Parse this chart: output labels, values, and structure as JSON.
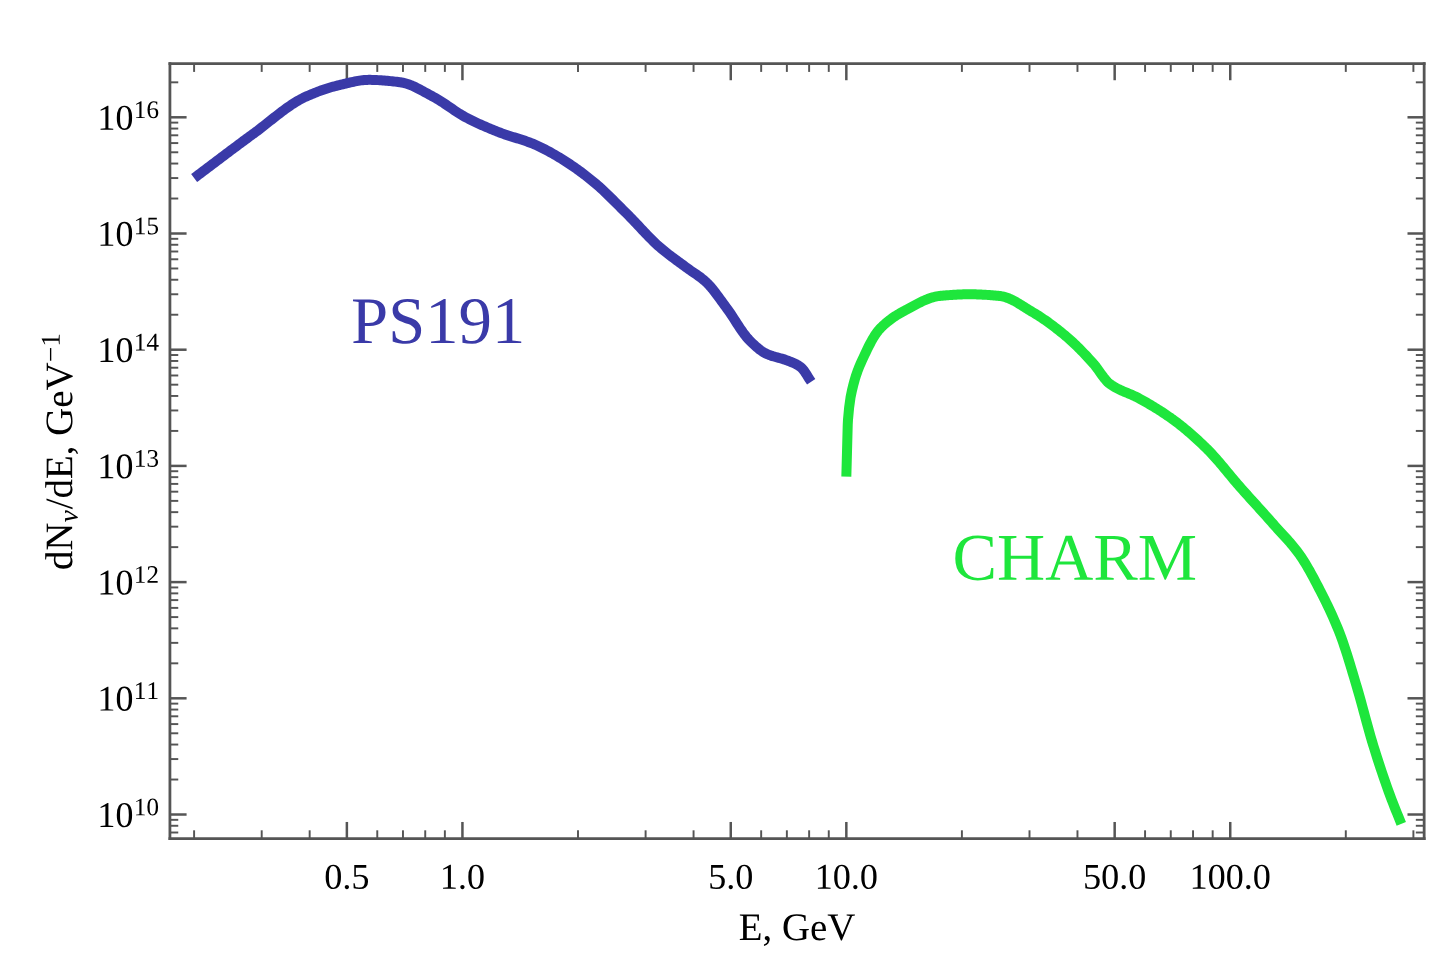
{
  "chart_data": {
    "type": "line",
    "xlabel": "E, GeV",
    "ylabel": "dN$_{ν}$/dE, GeV$^{−1}$",
    "log": "xy",
    "xlim": [
      0.173,
      320
    ],
    "ylim": [
      6200000000.0,
      2.9e+16
    ],
    "xticks": [
      0.5,
      {
        "value": 1,
        "label": "1.0"
      },
      {
        "value": 5,
        "label": "5.0"
      },
      {
        "value": 10,
        "label": "10.0"
      },
      {
        "value": 50,
        "label": "50.0"
      },
      {
        "value": 100,
        "label": "100.0"
      }
    ],
    "yticks": [
      {
        "value": 10000000000.0,
        "label": "10$^{10}$"
      },
      {
        "value": 100000000000.0,
        "label": "10$^{11}$"
      },
      {
        "value": 1000000000000.0,
        "label": "10$^{12}$"
      },
      {
        "value": 10000000000000.0,
        "label": "10$^{13}$"
      },
      {
        "value": 100000000000000.0,
        "label": "10$^{14}$"
      },
      {
        "value": 1000000000000000.0,
        "label": "10$^{15}$"
      },
      {
        "value": 1e+16,
        "label": "10$^{16}$"
      }
    ],
    "series": [
      {
        "name": "PS191",
        "color": "#3a3aa8",
        "x": [
          0.2,
          0.285,
          0.39,
          0.48,
          0.57,
          0.69,
          0.84,
          1.02,
          1.25,
          1.53,
          1.79,
          2.19,
          2.67,
          3.27,
          3.83,
          4.32,
          4.87,
          5.6,
          6.2,
          7.0,
          7.6,
          8.1
        ],
        "values": [
          3000000000000000.0,
          7200000000000000.0,
          1.5e+16,
          1.9e+16,
          2.1e+16,
          2e+16,
          1.5e+16,
          1e+16,
          7400000000000000.0,
          5900000000000000.0,
          4500000000000000.0,
          2800000000000000.0,
          1500000000000000.0,
          760000000000000.0,
          510000000000000.0,
          380000000000000.0,
          230000000000000.0,
          120000000000000.0,
          92000000000000.0,
          81000000000000.0,
          71000000000000.0,
          53000000000000.0
        ]
      },
      {
        "name": "CHARM",
        "color": "#1ee63c",
        "x": [
          10,
          10.1,
          10.4,
          11.1,
          12.2,
          14.3,
          17.5,
          20.9,
          25.1,
          30.6,
          37.4,
          44,
          48.5,
          58,
          71,
          87,
          106,
          129,
          152,
          171,
          193,
          213,
          236,
          260,
          279
        ],
        "values": [
          8100000000000.0,
          25000000000000.0,
          48000000000000.0,
          87000000000000.0,
          150000000000000.0,
          220000000000000.0,
          290000000000000.0,
          300000000000000.0,
          290000000000000.0,
          210000000000000.0,
          130000000000000.0,
          76000000000000.0,
          51000000000000.0,
          38000000000000.0,
          25000000000000.0,
          14000000000000.0,
          6600000000000.0,
          3200000000000.0,
          1700000000000.0,
          860000000000.0,
          360000000000.0,
          130000000000.0,
          39000000000.0,
          15000000000.0,
          8300000000.0
        ]
      }
    ]
  }
}
